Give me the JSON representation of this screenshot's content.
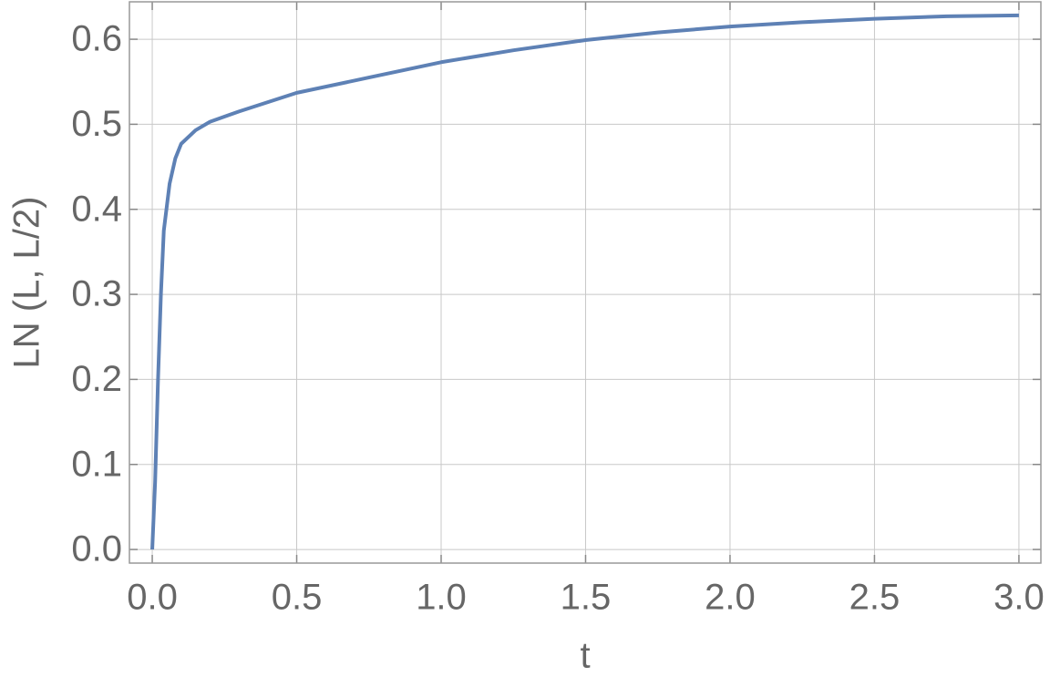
{
  "chart_data": {
    "type": "line",
    "x_label": "t",
    "y_label": "LN (L, L/2)",
    "x": [
      0,
      0.01,
      0.02,
      0.03,
      0.04,
      0.06,
      0.08,
      0.1,
      0.15,
      0.2,
      0.3,
      0.5,
      0.75,
      1.0,
      1.25,
      1.5,
      1.75,
      2.0,
      2.25,
      2.5,
      2.75,
      3.0
    ],
    "series": [
      {
        "color": "#5e81b5",
        "values": [
          0.0,
          0.08,
          0.2,
          0.3,
          0.375,
          0.43,
          0.46,
          0.477,
          0.493,
          0.503,
          0.515,
          0.537,
          0.555,
          0.573,
          0.587,
          0.599,
          0.608,
          0.615,
          0.62,
          0.624,
          0.627,
          0.628
        ]
      }
    ],
    "xlim": [
      -0.079,
      3.076
    ],
    "ylim": [
      -0.016,
      0.644
    ],
    "xticks": [
      {
        "value": 0,
        "label": "0.0"
      },
      0.5,
      {
        "value": 1,
        "label": "1.0"
      },
      1.5,
      {
        "value": 2,
        "label": "2.0"
      },
      2.5,
      {
        "value": 3,
        "label": "3.0"
      }
    ],
    "yticks": [
      {
        "value": 0,
        "label": "0.0"
      },
      0.1,
      0.2,
      0.3,
      0.4,
      0.5,
      0.6
    ],
    "grid": true
  }
}
